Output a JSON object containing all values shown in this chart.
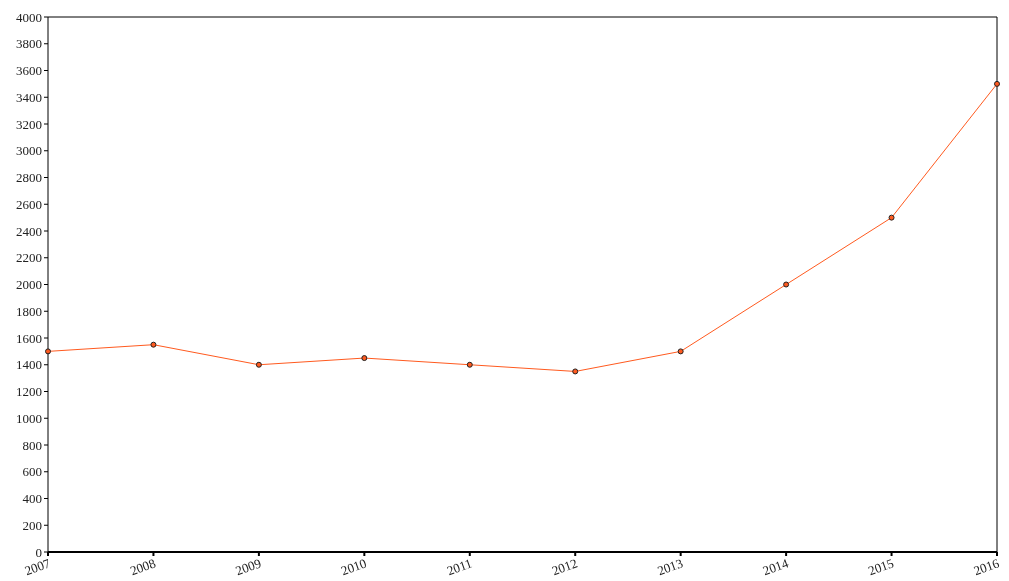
{
  "chart_data": {
    "type": "line",
    "x": [
      2007,
      2008,
      2009,
      2010,
      2011,
      2012,
      2013,
      2014,
      2015,
      2016
    ],
    "series": [
      {
        "color": "#ff5a1f",
        "values": [
          1500,
          1550,
          1400,
          1450,
          1400,
          1350,
          1500,
          2000,
          2500,
          3500
        ]
      }
    ],
    "xlim": [
      2007,
      2016
    ],
    "xticks": [
      2007,
      2008,
      2009,
      2010,
      2011,
      2012,
      2013,
      2014,
      2015,
      2016
    ],
    "ylim": [
      0,
      4000
    ],
    "yticks": [
      0,
      200,
      400,
      600,
      800,
      1000,
      1200,
      1400,
      1600,
      1800,
      2000,
      2200,
      2400,
      2600,
      2800,
      3000,
      3200,
      3400,
      3600,
      3800,
      4000
    ],
    "grid": false,
    "legend": false,
    "marker": "circle",
    "line_style": "solid"
  }
}
